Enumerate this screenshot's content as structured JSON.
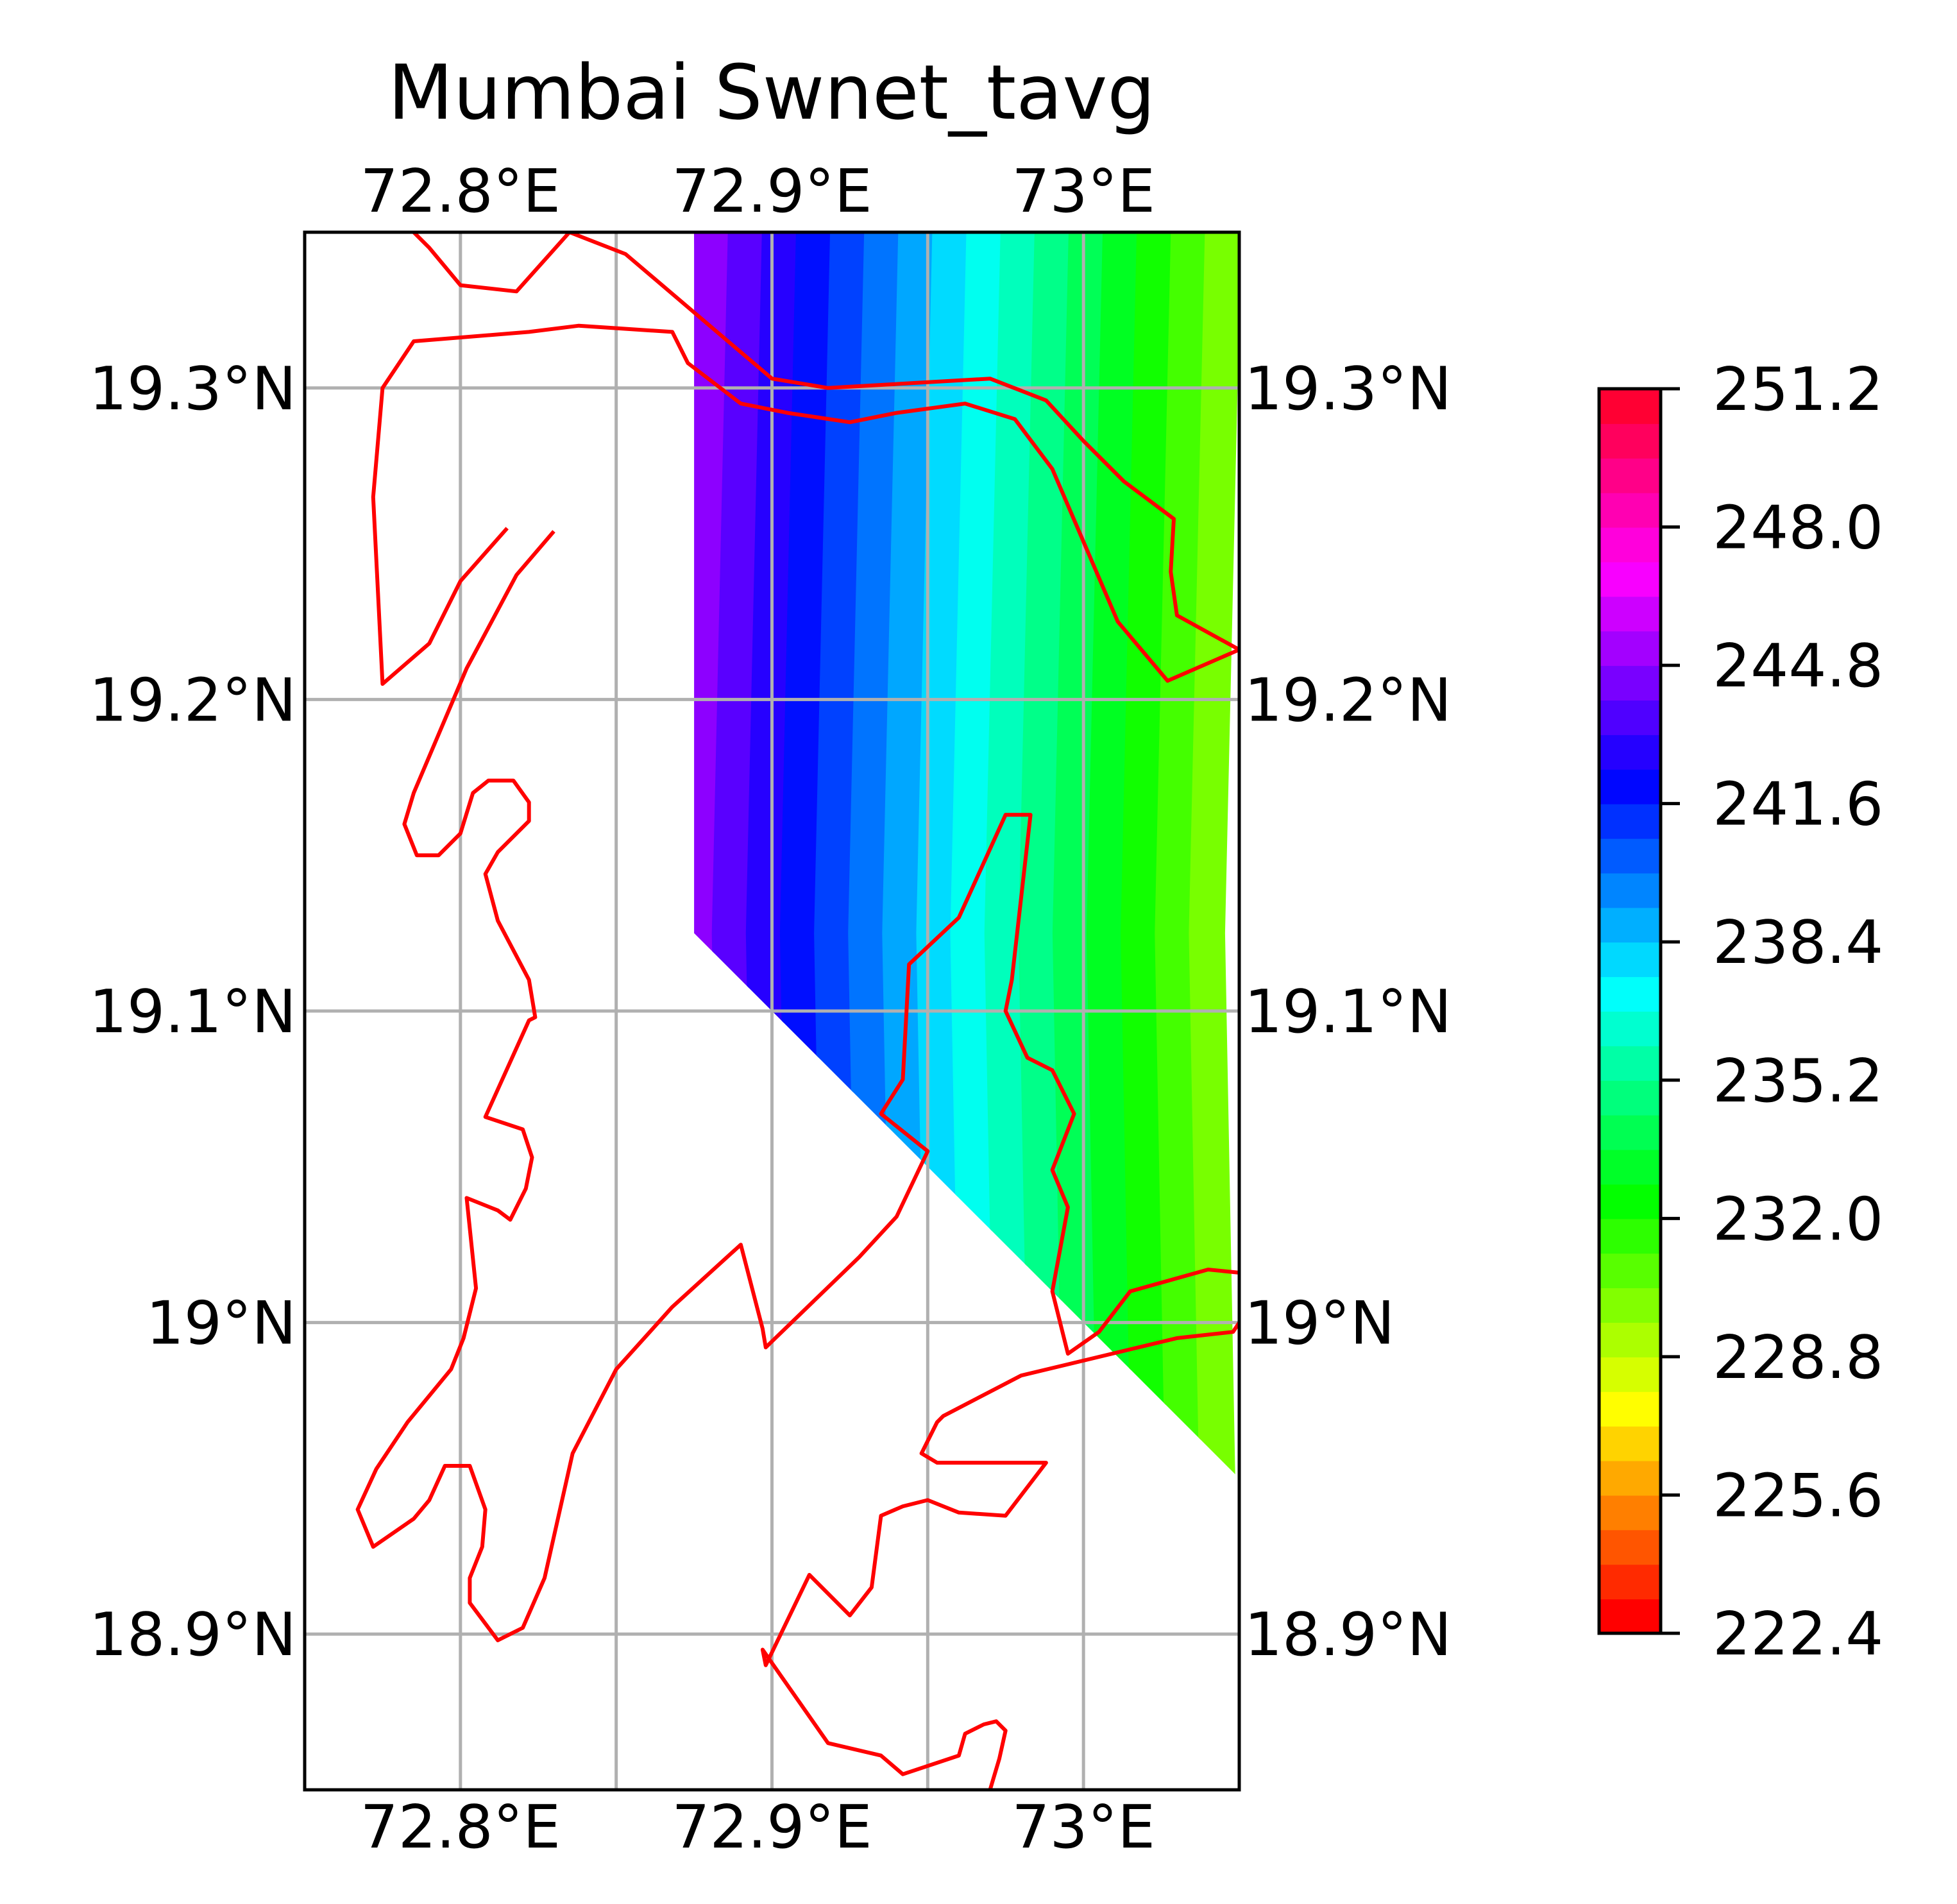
{
  "title": "Mumbai Swnet_tavg",
  "map": {
    "lon_range": [
      72.75,
      73.05
    ],
    "lat_range": [
      18.85,
      19.35
    ],
    "lon_ticks": [
      {
        "value": 72.8,
        "label": "72.8°E"
      },
      {
        "value": 72.9,
        "label": "72.9°E"
      },
      {
        "value": 73.0,
        "label": "73°E"
      }
    ],
    "lon_gridlines": [
      72.8,
      72.85,
      72.9,
      72.95,
      73.0
    ],
    "lat_ticks": [
      {
        "value": 18.9,
        "label": "18.9°N"
      },
      {
        "value": 19.0,
        "label": "19°N"
      },
      {
        "value": 19.1,
        "label": "19.1°N"
      },
      {
        "value": 19.2,
        "label": "19.2°N"
      },
      {
        "value": 19.3,
        "label": "19.3°N"
      }
    ],
    "grid": true,
    "grid_color": "#b0b0b0",
    "coastline_color": "#ff0000"
  },
  "chart_data": {
    "type": "heatmap",
    "title": "Mumbai Swnet_tavg",
    "colormap": "gist_rainbow_r",
    "colorbar": {
      "min": 222.4,
      "max": 251.2,
      "levels": 36,
      "tick_values": [
        222.4,
        225.6,
        228.8,
        232.0,
        235.2,
        238.4,
        241.6,
        244.8,
        248.0,
        251.2
      ],
      "tick_labels": [
        "222.4",
        "225.6",
        "228.8",
        "232.0",
        "235.2",
        "238.4",
        "241.6",
        "244.8",
        "248.0",
        "251.2"
      ],
      "placement": "right"
    },
    "data_region": [
      [
        72.875,
        19.35
      ],
      [
        73.05,
        19.35
      ],
      [
        73.05,
        18.95
      ],
      [
        72.875,
        19.125
      ]
    ],
    "field": {
      "description": "Values decrease west to east",
      "west_lon": 72.875,
      "east_lon": 73.05,
      "west_value": 245.5,
      "east_value": 229.5
    }
  },
  "colors": {
    "frame": "#000000",
    "background": "#ffffff"
  }
}
